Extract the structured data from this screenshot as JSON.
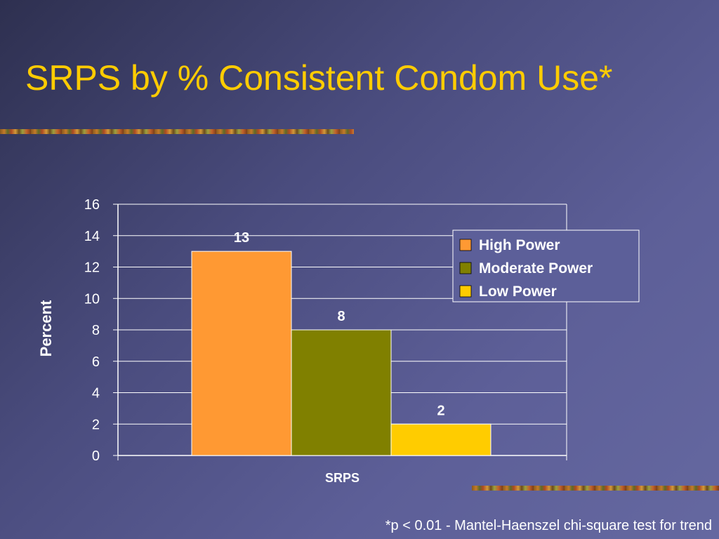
{
  "slide": {
    "title": "SRPS by % Consistent Condom Use*",
    "footnote": "*p < 0.01 - Mantel-Haenszel chi-square test for trend"
  },
  "colors": {
    "title": "#ffcc00",
    "text": "#ffffff",
    "grid": "#ffffff",
    "legend_bg": "#5c5f99"
  },
  "chart_data": {
    "type": "bar",
    "categories": [
      "SRPS"
    ],
    "series": [
      {
        "name": "High Power",
        "values": [
          13
        ],
        "color": "#ff9933"
      },
      {
        "name": "Moderate Power",
        "values": [
          8
        ],
        "color": "#808000"
      },
      {
        "name": "Low Power",
        "values": [
          2
        ],
        "color": "#ffcc00"
      }
    ],
    "xlabel": "SRPS",
    "ylabel": "Percent",
    "ylim": [
      0,
      16
    ],
    "yticks": [
      0,
      2,
      4,
      6,
      8,
      10,
      12,
      14,
      16
    ],
    "grid": true,
    "data_labels": true,
    "legend": "top-right"
  }
}
